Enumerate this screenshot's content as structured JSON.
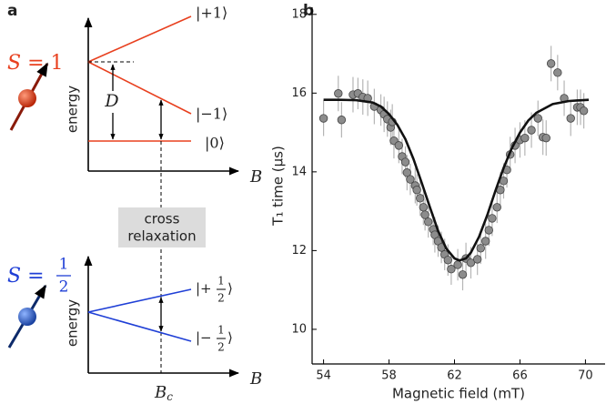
{
  "diagram": {
    "label": "a",
    "top": {
      "spin": {
        "prefix": "S = ",
        "value": "1"
      },
      "axis_y": "energy",
      "axis_x": "B",
      "states": [
        "|+1⟩",
        "|−1⟩",
        "|0⟩"
      ],
      "gap": "D",
      "color": "#e8401f"
    },
    "box": {
      "lines": [
        "cross",
        "relaxation"
      ]
    },
    "bottom": {
      "spin": {
        "prefix": "S = ",
        "num": "1",
        "den": "2"
      },
      "axis_y": "energy",
      "axis_x": "B",
      "states": [
        {
          "prefix": "|+",
          "num": "1",
          "den": "2",
          "suffix": "⟩"
        },
        {
          "prefix": "|−",
          "num": "1",
          "den": "2",
          "suffix": "⟩"
        }
      ],
      "color": "#1f3fd6"
    },
    "crossing": {
      "main": "B",
      "sub": "c"
    }
  },
  "chart_data": {
    "type": "scatter",
    "label": "b",
    "xlabel": "Magnetic field (mT)",
    "ylabel": "T₁ time (μs)",
    "xlim": [
      53.3,
      71.2
    ],
    "ylim": [
      9.12,
      18.18
    ],
    "xticks": [
      54,
      58,
      62,
      66,
      70
    ],
    "yticks": [
      10,
      12,
      14,
      16,
      18
    ],
    "marker_color": "#8c8c8c",
    "errorbar_color": "#b5b5b5",
    "fit_color": "#111111",
    "points": {
      "x": [
        54.0,
        54.9,
        55.1,
        55.8,
        56.1,
        56.4,
        56.7,
        57.1,
        57.5,
        57.7,
        57.9,
        58.1,
        58.2,
        58.3,
        58.6,
        58.8,
        59.0,
        59.1,
        59.3,
        59.6,
        59.7,
        59.9,
        60.1,
        60.2,
        60.4,
        60.7,
        60.8,
        61.0,
        61.2,
        61.4,
        61.6,
        61.8,
        62.2,
        62.5,
        62.7,
        63.0,
        63.4,
        63.6,
        63.9,
        64.1,
        64.3,
        64.6,
        64.8,
        65.0,
        65.2,
        65.4,
        65.7,
        66.0,
        66.3,
        66.7,
        67.1,
        67.4,
        67.6,
        67.9,
        68.3,
        68.7,
        69.1,
        69.5,
        69.7,
        69.9
      ],
      "y": [
        15.36,
        15.99,
        15.32,
        15.96,
        15.99,
        15.9,
        15.87,
        15.66,
        15.57,
        15.46,
        15.34,
        15.13,
        15.27,
        14.79,
        14.67,
        14.39,
        14.25,
        13.98,
        13.81,
        13.65,
        13.54,
        13.33,
        13.1,
        12.91,
        12.73,
        12.54,
        12.4,
        12.24,
        12.08,
        11.9,
        11.76,
        11.53,
        11.64,
        11.39,
        11.8,
        11.69,
        11.78,
        12.06,
        12.24,
        12.52,
        12.82,
        13.1,
        13.54,
        13.77,
        14.05,
        14.44,
        14.67,
        14.81,
        14.86,
        15.06,
        15.36,
        14.88,
        14.86,
        16.75,
        16.52,
        15.87,
        15.36,
        15.64,
        15.64,
        15.55
      ],
      "errors": [
        0.45,
        0.45,
        0.45,
        0.45,
        0.4,
        0.45,
        0.45,
        0.45,
        0.4,
        0.45,
        0.45,
        0.45,
        0.45,
        0.45,
        0.45,
        0.45,
        0.4,
        0.45,
        0.4,
        0.45,
        0.4,
        0.45,
        0.45,
        0.4,
        0.4,
        0.4,
        0.45,
        0.4,
        0.4,
        0.4,
        0.4,
        0.4,
        0.4,
        0.4,
        0.4,
        0.4,
        0.4,
        0.4,
        0.45,
        0.4,
        0.45,
        0.4,
        0.45,
        0.45,
        0.45,
        0.45,
        0.45,
        0.45,
        0.45,
        0.45,
        0.45,
        0.45,
        0.45,
        0.45,
        0.45,
        0.45,
        0.45,
        0.45,
        0.45,
        0.45
      ]
    },
    "fit": {
      "x": [
        54.0,
        55.0,
        56.0,
        57.0,
        57.5,
        58.0,
        58.5,
        59.0,
        59.5,
        60.0,
        60.5,
        61.0,
        61.5,
        62.0,
        62.3,
        62.7,
        63.0,
        63.5,
        64.0,
        64.5,
        65.0,
        65.5,
        66.0,
        66.5,
        67.0,
        68.0,
        69.0,
        70.2
      ],
      "y": [
        15.83,
        15.83,
        15.82,
        15.76,
        15.66,
        15.47,
        15.2,
        14.83,
        14.32,
        13.72,
        13.1,
        12.5,
        12.05,
        11.8,
        11.75,
        11.8,
        11.95,
        12.35,
        12.9,
        13.52,
        14.1,
        14.6,
        15.0,
        15.3,
        15.5,
        15.72,
        15.8,
        15.83
      ]
    }
  }
}
